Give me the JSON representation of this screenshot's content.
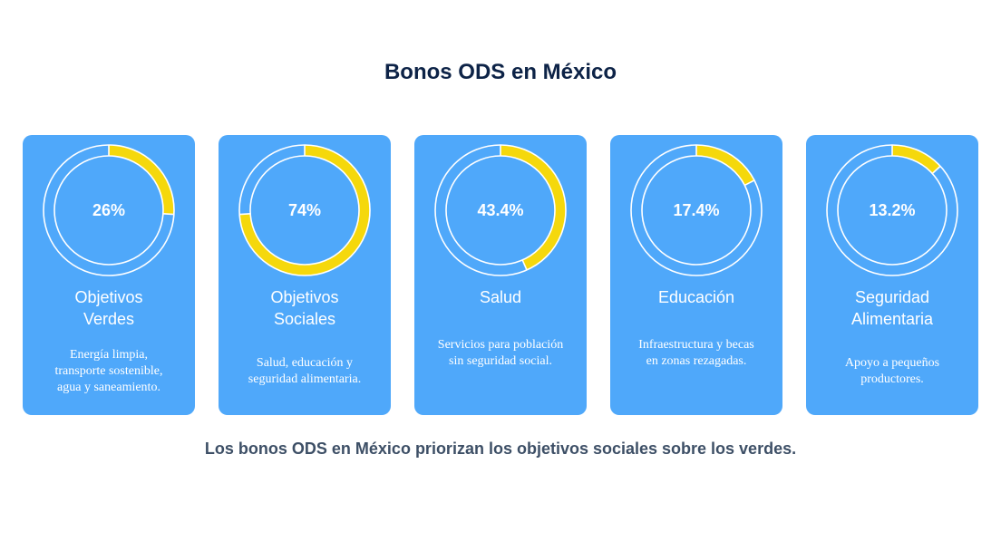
{
  "header": {
    "title": "Bonos ODS en México"
  },
  "cards": [
    {
      "title": "Objetivos Verdes",
      "value": 26,
      "value_label": "26%",
      "description": "Energía limpia, transporte sostenible, agua y saneamiento."
    },
    {
      "title": "Objetivos Sociales",
      "value": 74,
      "value_label": "74%",
      "description": "Salud, educación y seguridad alimentaria."
    },
    {
      "title": "Salud",
      "value": 43.4,
      "value_label": "43.4%",
      "description": "Servicios para población sin seguridad social."
    },
    {
      "title": "Educación",
      "value": 17.4,
      "value_label": "17.4%",
      "description": "Infraestructura y becas en zonas rezagadas."
    },
    {
      "title": "Seguridad Alimentaria",
      "value": 13.2,
      "value_label": "13.2%",
      "description": "Apoyo a pequeños productores."
    }
  ],
  "footer": {
    "text": "Los bonos ODS en México priorizan los objetivos sociales sobre los verdes."
  }
}
